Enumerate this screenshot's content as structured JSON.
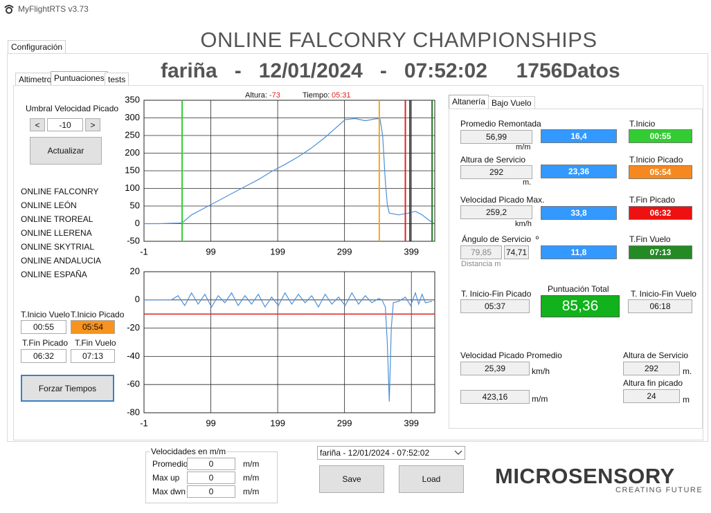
{
  "window": {
    "title": "MyFlightRTS v3.73"
  },
  "header": {
    "title": "ONLINE FALCONRY CHAMPIONSHIPS",
    "session": "fariña   -   12/01/2024   -   07:52:02     1756Datos"
  },
  "tabs": {
    "main": [
      "Configuración"
    ],
    "sub": [
      "Altimetro",
      "Puntuaciones",
      "tests"
    ],
    "right": [
      "Altanería",
      "Bajo Vuelo"
    ]
  },
  "controls": {
    "umbral_label": "Umbral Velocidad Picado",
    "dec": "<",
    "umbral": -10,
    "inc": ">",
    "update": "Actualizar",
    "force": "Forzar Tiempos"
  },
  "clubs": [
    "ONLINE FALCONRY",
    "ONLINE LEÓN",
    "ONLINE TROREAL",
    "ONLINE LLERENA",
    "ONLINE SKYTRIAL",
    "ONLINE ANDALUCIA",
    "ONLINE ESPAÑA"
  ],
  "times": [
    {
      "label": "T.Inicio Vuelo",
      "value": "00:55"
    },
    {
      "label": "T.Inicio Picado",
      "value": "05:54"
    },
    {
      "label": "T.Fin Picado",
      "value": "06:32"
    },
    {
      "label": "T.Fin Vuelo",
      "value": "07:13"
    }
  ],
  "readout": {
    "alt_label": "Altura:",
    "alt": -73,
    "time_label": "Tiempo:",
    "time": "05:31"
  },
  "chart_data": [
    {
      "type": "line",
      "color": "#4a8fd8",
      "x": [
        -1,
        20,
        40,
        56,
        70,
        90,
        110,
        130,
        150,
        170,
        190,
        210,
        230,
        250,
        270,
        285,
        300,
        315,
        330,
        345,
        352,
        356,
        360,
        363,
        366,
        380,
        395,
        405,
        415,
        425,
        432
      ],
      "values": [
        0,
        0,
        1,
        2,
        25,
        45,
        65,
        85,
        105,
        125,
        148,
        168,
        190,
        215,
        245,
        270,
        295,
        298,
        292,
        297,
        298,
        250,
        120,
        55,
        30,
        25,
        30,
        35,
        25,
        10,
        2
      ],
      "xlim": [
        -1,
        434
      ],
      "ylim": [
        -50,
        350
      ],
      "xticks": [
        -1,
        99,
        199,
        299,
        399
      ],
      "yticks": [
        -50,
        0,
        50,
        100,
        150,
        200,
        250,
        300,
        350
      ],
      "grid": true,
      "markers": [
        {
          "x": 56,
          "color": "#33cc33"
        },
        {
          "x": 351,
          "color": "#f5a623"
        },
        {
          "x": 390,
          "color": "#e02020"
        },
        {
          "x": 397,
          "color": "#222222"
        },
        {
          "x": 430,
          "color": "#1e7b1e"
        }
      ]
    },
    {
      "type": "line",
      "color": "#4a8fd8",
      "x": [
        -1,
        20,
        40,
        50,
        60,
        70,
        80,
        90,
        100,
        110,
        120,
        130,
        140,
        150,
        160,
        170,
        180,
        190,
        200,
        210,
        220,
        230,
        240,
        250,
        260,
        270,
        280,
        290,
        300,
        310,
        320,
        330,
        340,
        350,
        355,
        360,
        363,
        366,
        369,
        372,
        380,
        390,
        398,
        405,
        410,
        415,
        420,
        430
      ],
      "values": [
        0,
        0,
        0,
        3,
        -4,
        5,
        -3,
        4,
        -5,
        3,
        -2,
        5,
        -4,
        3,
        -3,
        4,
        -5,
        2,
        -4,
        5,
        -3,
        4,
        -2,
        3,
        -5,
        4,
        -3,
        2,
        -4,
        5,
        -3,
        3,
        -2,
        1,
        0,
        -5,
        -30,
        -72,
        -20,
        -2,
        -1,
        2,
        -4,
        5,
        -3,
        4,
        -2,
        -1
      ],
      "xlim": [
        -1,
        434
      ],
      "ylim": [
        -80,
        20
      ],
      "xticks": [
        -1,
        99,
        199,
        299,
        399
      ],
      "yticks": [
        -80,
        -60,
        -40,
        -20,
        0,
        20
      ],
      "grid": true,
      "threshold_color": "#e02020"
    }
  ],
  "panel": {
    "remontada": {
      "label": "Promedio Remontada",
      "value": "56,99",
      "unit": "m/m",
      "score": "16,4"
    },
    "servicio": {
      "label": "Altura de Servicio",
      "value": "292",
      "unit": "m.",
      "score": "23,36"
    },
    "picado": {
      "label": "Velocidad Picado Max.",
      "value": "259,2",
      "unit": "km/h",
      "score": "33,8"
    },
    "angulo": {
      "label": "Ángulo de Servicio  º",
      "value": "79,85",
      "value2": "74,71",
      "note": "Distancia m",
      "score": "11,8"
    },
    "t_inicio": {
      "label": "T.Inicio",
      "value": "00:55"
    },
    "t_inicio_picado": {
      "label": "T.Inicio Picado",
      "value": "05:54"
    },
    "t_fin_picado": {
      "label": "T.Fin Picado",
      "value": "06:32"
    },
    "t_fin_vuelo": {
      "label": "T.Fin Vuelo",
      "value": "07:13"
    },
    "dur_picado": {
      "label": "T. Inicio-Fin Picado",
      "value": "05:37"
    },
    "total": {
      "label": "Puntuación Total",
      "value": "85,36"
    },
    "dur_vuelo": {
      "label": "T. Inicio-Fin Vuelo",
      "value": "06:18"
    },
    "vel_prom": {
      "label": "Velocidad Picado Promedio",
      "value": "25,39",
      "unit": "km/h",
      "value2": "423,16",
      "unit2": "m/m"
    },
    "alt_serv": {
      "label": "Altura de Servicio",
      "value": "292",
      "unit": "m."
    },
    "alt_fin": {
      "label": "Altura fin picado",
      "value": "24",
      "unit": "m"
    }
  },
  "speeds": {
    "title": "Velocidades en m/m",
    "rows": [
      {
        "label": "Promedio",
        "value": "0",
        "unit": "m/m"
      },
      {
        "label": "Max up",
        "value": "0",
        "unit": "m/m"
      },
      {
        "label": "Max dwn",
        "value": "0",
        "unit": "m/m"
      }
    ]
  },
  "session_select": "fariña  -  12/01/2024  -  07:52:02",
  "buttons": {
    "save": "Save",
    "load": "Load"
  },
  "logo": {
    "name": "MICROSENSORY",
    "tagline": "CREATING FUTURE"
  }
}
